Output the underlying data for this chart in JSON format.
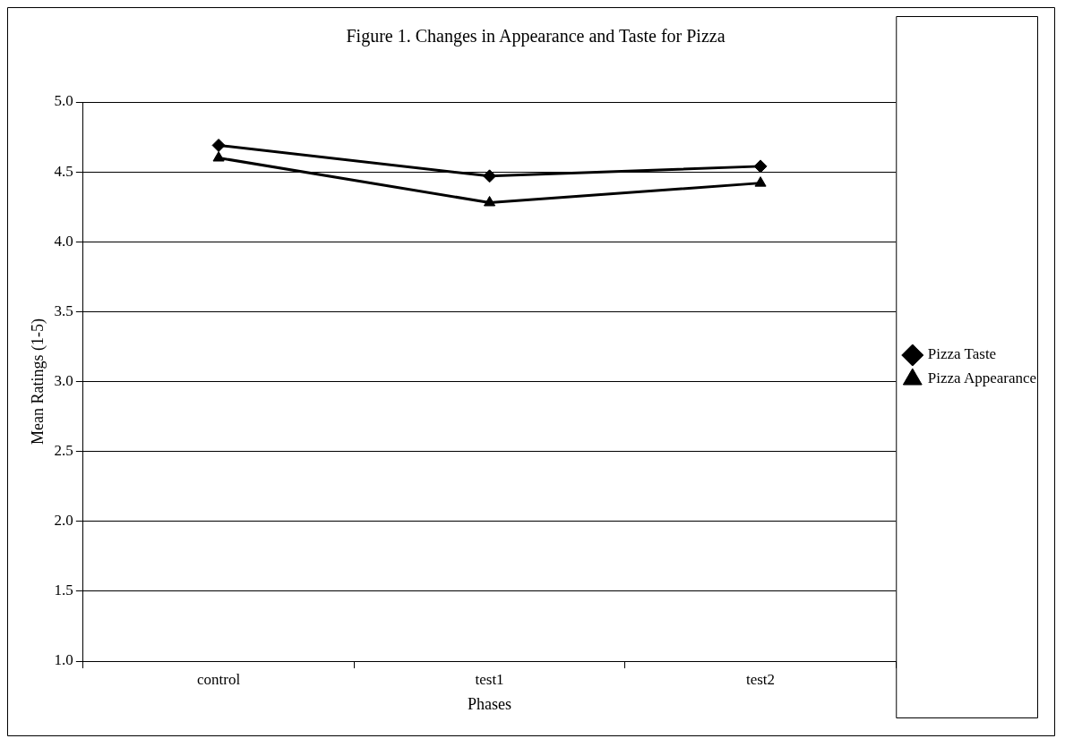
{
  "chart_data": {
    "type": "line",
    "title": "Figure 1. Changes in Appearance and Taste for Pizza",
    "xlabel": "Phases",
    "ylabel": "Mean Ratings (1-5)",
    "categories": [
      "control",
      "test1",
      "test2"
    ],
    "series": [
      {
        "name": "Pizza Taste",
        "color": "#000000",
        "marker": "diamond",
        "values": [
          4.69,
          4.47,
          4.54
        ]
      },
      {
        "name": "Pizza Appearance",
        "color": "#000000",
        "marker": "triangle",
        "values": [
          4.6,
          4.28,
          4.42
        ]
      }
    ],
    "ylim": [
      1,
      5
    ],
    "yticks": [
      {
        "value": 1,
        "label": "1.0"
      },
      {
        "value": 1.5,
        "label": "1.5"
      },
      {
        "value": 2,
        "label": "2.0"
      },
      {
        "value": 2.5,
        "label": "2.5"
      },
      {
        "value": 3,
        "label": "3.0"
      },
      {
        "value": 3.5,
        "label": "3.5"
      },
      {
        "value": 4,
        "label": "4.0"
      },
      {
        "value": 4.5,
        "label": "4.5"
      },
      {
        "value": 5,
        "label": "5.0"
      }
    ],
    "grid": "y",
    "legend": "right",
    "line_style": "solid"
  }
}
